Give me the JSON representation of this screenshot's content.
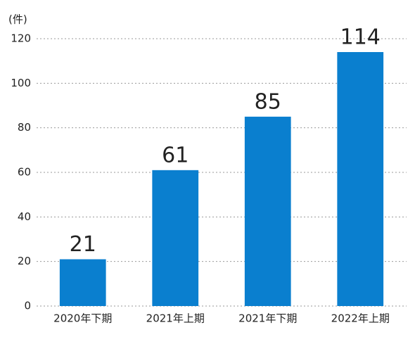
{
  "chart_data": {
    "type": "bar",
    "y_label": "(件)",
    "categories": [
      "2020年下期",
      "2021年上期",
      "2021年下期",
      "2022年上期"
    ],
    "values": [
      21,
      61,
      85,
      114
    ],
    "color": "#0a7fcf",
    "ylim": [
      0,
      120
    ],
    "yticks": [
      0,
      20,
      40,
      60,
      80,
      100,
      120
    ],
    "grid": true
  }
}
